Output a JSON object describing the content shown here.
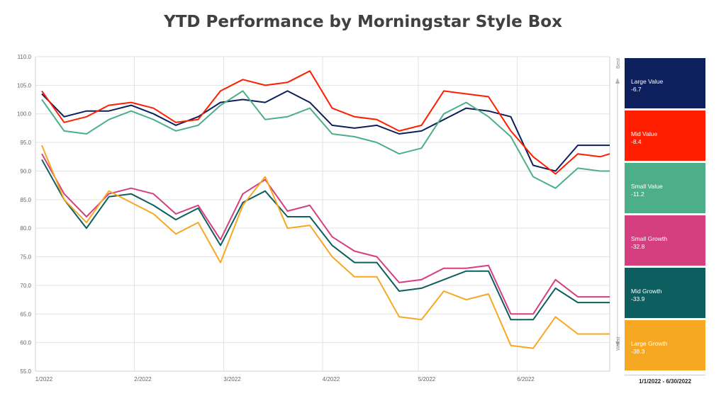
{
  "chart_data": {
    "type": "line",
    "title": "YTD Performance by Morningstar Style Box",
    "ylim": [
      55,
      110
    ],
    "yticks": [
      "55.0",
      "60.0",
      "65.0",
      "70.0",
      "75.0",
      "80.0",
      "85.0",
      "90.0",
      "95.0",
      "100.0",
      "105.0",
      "110.0"
    ],
    "xtick_labels": [
      "1/2022",
      "2/2022",
      "3/2022",
      "4/2022",
      "5/2022",
      "6/2022"
    ],
    "x": [
      "2022-01-03",
      "2022-01-10",
      "2022-01-17",
      "2022-01-24",
      "2022-01-31",
      "2022-02-07",
      "2022-02-14",
      "2022-02-21",
      "2022-02-28",
      "2022-03-07",
      "2022-03-14",
      "2022-03-21",
      "2022-03-28",
      "2022-04-04",
      "2022-04-11",
      "2022-04-18",
      "2022-04-25",
      "2022-05-02",
      "2022-05-09",
      "2022-05-16",
      "2022-05-23",
      "2022-05-30",
      "2022-06-06",
      "2022-06-13",
      "2022-06-20",
      "2022-06-27",
      "2022-06-30"
    ],
    "series": [
      {
        "name": "Large Value",
        "color": "#0d1f5c",
        "values": [
          103.5,
          99.5,
          100.5,
          100.5,
          101.5,
          100.0,
          98.0,
          99.5,
          102.0,
          102.5,
          102.0,
          104.0,
          102.0,
          98.0,
          97.5,
          98.0,
          96.5,
          97.0,
          99.0,
          101.0,
          100.5,
          99.5,
          91.0,
          90.0,
          94.5,
          94.5,
          94.5
        ]
      },
      {
        "name": "Mid Value",
        "color": "#ff1e00",
        "values": [
          104.0,
          98.5,
          99.5,
          101.5,
          102.0,
          101.0,
          98.5,
          99.0,
          104.0,
          106.0,
          105.0,
          105.5,
          107.5,
          101.0,
          99.5,
          99.0,
          97.0,
          98.0,
          104.0,
          103.5,
          103.0,
          97.0,
          92.5,
          89.5,
          93.0,
          92.5,
          93.0
        ]
      },
      {
        "name": "Small Value",
        "color": "#4caf8a",
        "values": [
          102.5,
          97.0,
          96.5,
          99.0,
          100.5,
          99.0,
          97.0,
          98.0,
          101.5,
          104.0,
          99.0,
          99.5,
          101.0,
          96.5,
          96.0,
          95.0,
          93.0,
          94.0,
          100.0,
          102.0,
          99.5,
          96.0,
          89.0,
          87.0,
          90.5,
          90.0,
          90.0
        ]
      },
      {
        "name": "Small Growth",
        "color": "#d63f7f",
        "values": [
          93.0,
          86.0,
          82.0,
          86.0,
          87.0,
          86.0,
          82.5,
          84.0,
          78.0,
          86.0,
          88.5,
          83.0,
          84.0,
          78.5,
          76.0,
          75.0,
          70.5,
          71.0,
          73.0,
          73.0,
          73.5,
          65.0,
          65.0,
          71.0,
          68.0,
          68.0,
          68.0
        ]
      },
      {
        "name": "Mid Growth",
        "color": "#0e5e5f",
        "values": [
          92.0,
          85.0,
          80.0,
          85.5,
          86.0,
          84.0,
          81.5,
          83.5,
          77.0,
          84.5,
          86.5,
          82.0,
          82.0,
          77.0,
          74.0,
          74.0,
          69.0,
          69.5,
          71.0,
          72.5,
          72.5,
          64.0,
          64.0,
          69.5,
          67.0,
          67.0,
          67.0
        ]
      },
      {
        "name": "Large Growth",
        "color": "#f7a823",
        "values": [
          94.5,
          85.0,
          81.0,
          86.5,
          84.5,
          82.5,
          79.0,
          81.0,
          74.0,
          84.0,
          89.0,
          80.0,
          80.5,
          75.0,
          71.5,
          71.5,
          64.5,
          64.0,
          69.0,
          67.5,
          68.5,
          59.5,
          59.0,
          64.5,
          61.5,
          61.5,
          61.5
        ]
      }
    ],
    "grid": true,
    "legend": "right"
  },
  "legend": {
    "items": [
      {
        "name": "Large Value",
        "value": "-6.7",
        "color": "#0d1f5c"
      },
      {
        "name": "Mid Value",
        "value": "-8.4",
        "color": "#ff1e00"
      },
      {
        "name": "Small Value",
        "value": "-11.2",
        "color": "#4caf8a"
      },
      {
        "name": "Small Growth",
        "value": "-32.8",
        "color": "#d63f7f"
      },
      {
        "name": "Mid Growth",
        "value": "-33.9",
        "color": "#0e5e5f"
      },
      {
        "name": "Large Growth",
        "value": "-38.3",
        "color": "#f7a823"
      }
    ],
    "best_label": "Best",
    "worst_label": "Worst",
    "date_range": "1/1/2022 - 6/30/2022"
  }
}
